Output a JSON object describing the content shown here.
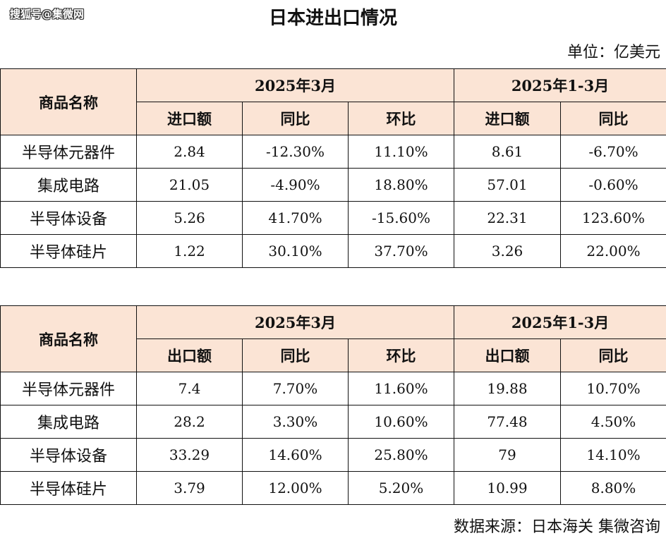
{
  "watermark": "搜狐号@集微网",
  "title": "日本进出口情况",
  "unit": "单位：亿美元",
  "tables": [
    {
      "id": "import",
      "header": {
        "name_col": "商品名称",
        "period1": "2025年3月",
        "period2": "2025年1-3月",
        "cols": [
          "进口额",
          "同比",
          "环比",
          "进口额",
          "同比"
        ]
      },
      "rows": [
        {
          "name": "半导体元器件",
          "values": [
            "2.84",
            "-12.30%",
            "11.10%",
            "8.61",
            "-6.70%"
          ]
        },
        {
          "name": "集成电路",
          "values": [
            "21.05",
            "-4.90%",
            "18.80%",
            "57.01",
            "-0.60%"
          ]
        },
        {
          "name": "半导体设备",
          "values": [
            "5.26",
            "41.70%",
            "-15.60%",
            "22.31",
            "123.60%"
          ]
        },
        {
          "name": "半导体硅片",
          "values": [
            "1.22",
            "30.10%",
            "37.70%",
            "3.26",
            "22.00%"
          ]
        }
      ]
    },
    {
      "id": "export",
      "header": {
        "name_col": "商品名称",
        "period1": "2025年3月",
        "period2": "2025年1-3月",
        "cols": [
          "出口额",
          "同比",
          "环比",
          "出口额",
          "同比"
        ]
      },
      "rows": [
        {
          "name": "半导体元器件",
          "values": [
            "7.4",
            "7.70%",
            "11.60%",
            "19.88",
            "10.70%"
          ]
        },
        {
          "name": "集成电路",
          "values": [
            "28.2",
            "3.30%",
            "10.60%",
            "77.48",
            "4.50%"
          ]
        },
        {
          "name": "半导体设备",
          "values": [
            "33.29",
            "14.60%",
            "25.80%",
            "79",
            "14.10%"
          ]
        },
        {
          "name": "半导体硅片",
          "values": [
            "3.79",
            "12.00%",
            "5.20%",
            "10.99",
            "8.80%"
          ]
        }
      ]
    }
  ],
  "source": "数据来源：日本海关 集微咨询"
}
